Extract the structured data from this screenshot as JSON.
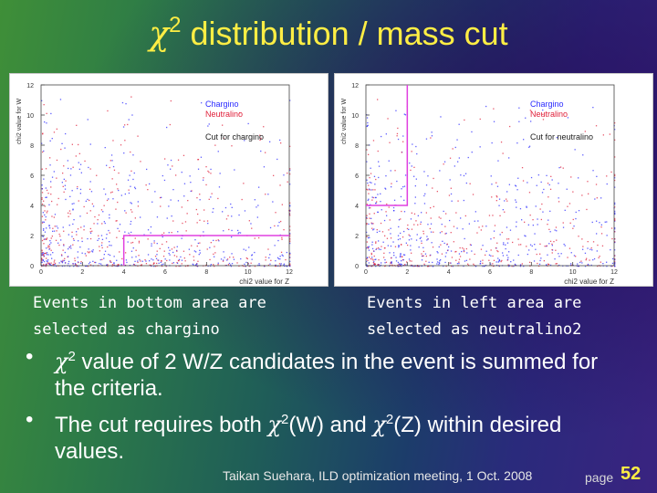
{
  "slide": {
    "title_symbol": "χ",
    "title_sup": "2",
    "title_rest": " distribution / mass cut"
  },
  "plots": [
    {
      "ylabel": "chi2 value for W",
      "xlabel": "chi2 value for Z",
      "y_ticks": [
        "0",
        "2",
        "4",
        "6",
        "8",
        "10",
        "12"
      ],
      "x_ticks": [
        "0",
        "2",
        "4",
        "6",
        "8",
        "10",
        "12"
      ],
      "legend": {
        "chargino": "Chargino",
        "neutralino": "Neutralino",
        "cut": "Cut for chargino"
      },
      "cut": {
        "x_min": 4,
        "y_max": 2
      }
    },
    {
      "ylabel": "chi2 value for W",
      "xlabel": "chi2 value for Z",
      "y_ticks": [
        "0",
        "2",
        "4",
        "6",
        "8",
        "10",
        "12"
      ],
      "x_ticks": [
        "0",
        "2",
        "4",
        "6",
        "8",
        "10",
        "12"
      ],
      "legend": {
        "chargino": "Chargino",
        "neutralino": "Neutralino",
        "cut": "Cut for neutralino"
      },
      "cut": {
        "x_max": 2,
        "y_min": 4
      }
    }
  ],
  "captions": {
    "left_line1": "Events in bottom area are",
    "left_line2": "selected as chargino",
    "right_line1": "Events in left area are",
    "right_line2": "selected as neutralino2"
  },
  "bullets": {
    "b1_sym": "χ",
    "b1_sup": "2",
    "b1_text": " value of 2 W/Z candidates in the event is summed for the criteria.",
    "b2_text_a": "The cut requires both ",
    "b2_sym1": "χ",
    "b2_sup1": "2",
    "b2_text_b": "(W) and ",
    "b2_sym2": "χ",
    "b2_sup2": "2",
    "b2_text_c": "(Z) within desired values."
  },
  "footer": {
    "credit": "Taikan Suehara, ILD optimization meeting, 1 Oct. 2008",
    "page_label": "page",
    "page_number": "52"
  },
  "colors": {
    "title": "#ffee44",
    "chargino": "#2a2aff",
    "neutralino": "#e0203a",
    "cut_line": "#e040e0"
  }
}
